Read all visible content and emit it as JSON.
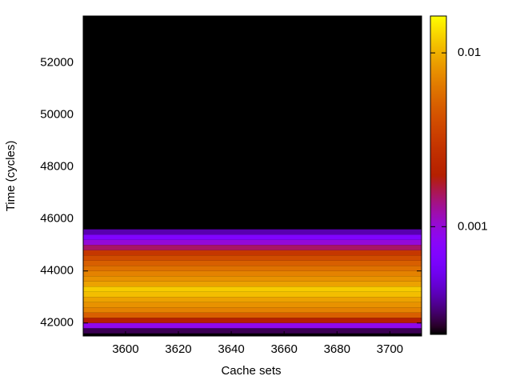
{
  "chart_data": {
    "type": "heatmap",
    "xlabel": "Cache sets",
    "ylabel": "Time (cycles)",
    "xlim": [
      3584,
      3712
    ],
    "xticks": [
      3600,
      3620,
      3640,
      3660,
      3680,
      3700
    ],
    "ylim": [
      41500,
      53800
    ],
    "yticks": [
      42000,
      44000,
      46000,
      48000,
      50000,
      52000
    ],
    "ybins": [
      41600,
      41800,
      42000,
      42200,
      42400,
      42600,
      42800,
      43000,
      43200,
      43400,
      43600,
      43800,
      44000,
      44200,
      44400,
      44600,
      44800,
      45000,
      45200,
      45400,
      45600
    ],
    "values": [
      0.0003,
      0.0009,
      0.002,
      0.005,
      0.007,
      0.008,
      0.009,
      0.011,
      0.012,
      0.009,
      0.008,
      0.007,
      0.006,
      0.005,
      0.004,
      0.003,
      0.0015,
      0.001,
      0.0007,
      0.0004
    ],
    "clim": [
      0.00024,
      0.0163
    ],
    "cticks": [
      0.001,
      0.01
    ],
    "clog": true
  }
}
